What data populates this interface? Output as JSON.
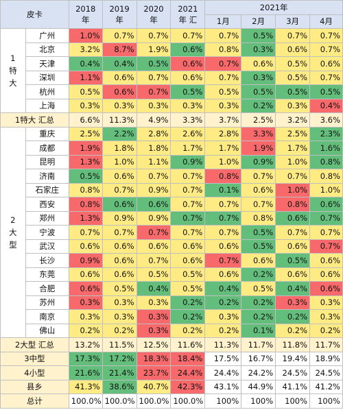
{
  "chart_data": {
    "type": "table",
    "header": {
      "corner": "皮卡",
      "year_cols": [
        "2018\n年",
        "2019\n年",
        "2020\n年",
        "2021\n年 汇"
      ],
      "month_group": "2021年",
      "month_cols": [
        "1月",
        "2月",
        "3月",
        "4月"
      ]
    },
    "groups": [
      {
        "label": "1\n特\n大",
        "rows": [
          {
            "city": "广州",
            "values": [
              "1.0%",
              "0.7%",
              "0.7%",
              "0.7%",
              "0.7%",
              "0.5%",
              "0.7%",
              "0.7%"
            ],
            "colors": [
              "#f8696b",
              "#ffeb84",
              "#ffeb84",
              "#ffeb84",
              "#ffeb84",
              "#63be7b",
              "#ffeb84",
              "#ffeb84"
            ]
          },
          {
            "city": "北京",
            "values": [
              "3.2%",
              "8.7%",
              "1.9%",
              "0.6%",
              "0.8%",
              "0.3%",
              "0.6%",
              "0.7%"
            ],
            "colors": [
              "#ffeb84",
              "#f8696b",
              "#ffeb84",
              "#63be7b",
              "#ffeb84",
              "#63be7b",
              "#ffeb84",
              "#ffeb84"
            ]
          },
          {
            "city": "天津",
            "values": [
              "0.4%",
              "0.4%",
              "0.5%",
              "0.6%",
              "0.7%",
              "0.6%",
              "0.5%",
              "0.6%"
            ],
            "colors": [
              "#63be7b",
              "#63be7b",
              "#63be7b",
              "#f8696b",
              "#f8696b",
              "#ffeb84",
              "#ffeb84",
              "#ffeb84"
            ]
          },
          {
            "city": "深圳",
            "values": [
              "1.1%",
              "0.6%",
              "0.7%",
              "0.6%",
              "0.7%",
              "0.3%",
              "0.5%",
              "0.7%"
            ],
            "colors": [
              "#f8696b",
              "#ffeb84",
              "#ffeb84",
              "#ffeb84",
              "#ffeb84",
              "#63be7b",
              "#ffeb84",
              "#ffeb84"
            ]
          },
          {
            "city": "杭州",
            "values": [
              "0.5%",
              "0.6%",
              "0.7%",
              "0.5%",
              "0.5%",
              "0.5%",
              "0.5%",
              "0.5%"
            ],
            "colors": [
              "#ffeb84",
              "#f8696b",
              "#f8696b",
              "#63be7b",
              "#ffeb84",
              "#63be7b",
              "#63be7b",
              "#63be7b"
            ]
          },
          {
            "city": "上海",
            "values": [
              "0.3%",
              "0.3%",
              "0.3%",
              "0.3%",
              "0.3%",
              "0.2%",
              "0.3%",
              "0.4%"
            ],
            "colors": [
              "#ffeb84",
              "#ffeb84",
              "#ffeb84",
              "#ffeb84",
              "#ffeb84",
              "#63be7b",
              "#ffeb84",
              "#f8696b"
            ]
          }
        ]
      },
      {
        "subtotal_label": "1特大 汇总",
        "subtotal_values": [
          "6.6%",
          "11.3%",
          "4.9%",
          "3.3%",
          "3.7%",
          "2.5%",
          "3.2%",
          "3.6%"
        ]
      },
      {
        "label": "2\n大\n型",
        "rows": [
          {
            "city": "重庆",
            "values": [
              "2.5%",
              "2.2%",
              "2.8%",
              "2.6%",
              "2.8%",
              "3.3%",
              "2.5%",
              "2.3%"
            ],
            "colors": [
              "#ffeb84",
              "#63be7b",
              "#ffeb84",
              "#ffeb84",
              "#ffeb84",
              "#f8696b",
              "#ffeb84",
              "#63be7b"
            ]
          },
          {
            "city": "成都",
            "values": [
              "1.9%",
              "1.8%",
              "1.8%",
              "1.7%",
              "1.7%",
              "1.9%",
              "1.7%",
              "1.6%"
            ],
            "colors": [
              "#f8696b",
              "#ffeb84",
              "#ffeb84",
              "#ffeb84",
              "#ffeb84",
              "#f8696b",
              "#ffeb84",
              "#63be7b"
            ]
          },
          {
            "city": "昆明",
            "values": [
              "1.3%",
              "1.0%",
              "1.1%",
              "0.9%",
              "1.0%",
              "0.9%",
              "1.0%",
              "0.8%"
            ],
            "colors": [
              "#f8696b",
              "#ffeb84",
              "#ffeb84",
              "#63be7b",
              "#ffeb84",
              "#63be7b",
              "#ffeb84",
              "#63be7b"
            ]
          },
          {
            "city": "济南",
            "values": [
              "0.5%",
              "0.6%",
              "0.7%",
              "0.7%",
              "0.8%",
              "0.7%",
              "0.7%",
              "0.8%"
            ],
            "colors": [
              "#63be7b",
              "#ffeb84",
              "#ffeb84",
              "#ffeb84",
              "#f8696b",
              "#ffeb84",
              "#ffeb84",
              "#ffeb84"
            ]
          },
          {
            "city": "石家庄",
            "values": [
              "0.8%",
              "0.7%",
              "0.9%",
              "0.7%",
              "0.1%",
              "0.6%",
              "1.0%",
              "1.0%"
            ],
            "colors": [
              "#ffeb84",
              "#ffeb84",
              "#ffeb84",
              "#ffeb84",
              "#63be7b",
              "#ffeb84",
              "#f8696b",
              "#ffeb84"
            ]
          },
          {
            "city": "西安",
            "values": [
              "0.8%",
              "0.6%",
              "0.6%",
              "0.7%",
              "0.7%",
              "0.7%",
              "0.8%",
              "0.6%"
            ],
            "colors": [
              "#f8696b",
              "#63be7b",
              "#63be7b",
              "#ffeb84",
              "#ffeb84",
              "#ffeb84",
              "#f8696b",
              "#63be7b"
            ]
          },
          {
            "city": "郑州",
            "values": [
              "1.3%",
              "0.9%",
              "0.9%",
              "0.7%",
              "0.7%",
              "0.8%",
              "0.6%",
              "0.7%"
            ],
            "colors": [
              "#f8696b",
              "#ffeb84",
              "#ffeb84",
              "#63be7b",
              "#63be7b",
              "#ffeb84",
              "#63be7b",
              "#63be7b"
            ]
          },
          {
            "city": "宁波",
            "values": [
              "0.7%",
              "0.7%",
              "0.7%",
              "0.7%",
              "0.7%",
              "0.5%",
              "0.7%",
              "0.7%"
            ],
            "colors": [
              "#ffeb84",
              "#ffeb84",
              "#f8696b",
              "#ffeb84",
              "#ffeb84",
              "#63be7b",
              "#ffeb84",
              "#ffeb84"
            ]
          },
          {
            "city": "武汉",
            "values": [
              "0.6%",
              "0.6%",
              "0.6%",
              "0.6%",
              "0.6%",
              "0.5%",
              "0.6%",
              "0.7%"
            ],
            "colors": [
              "#ffeb84",
              "#ffeb84",
              "#ffeb84",
              "#ffeb84",
              "#ffeb84",
              "#63be7b",
              "#ffeb84",
              "#f8696b"
            ]
          },
          {
            "city": "长沙",
            "values": [
              "0.9%",
              "0.6%",
              "0.7%",
              "0.6%",
              "0.7%",
              "0.6%",
              "0.5%",
              "0.6%"
            ],
            "colors": [
              "#f8696b",
              "#ffeb84",
              "#ffeb84",
              "#ffeb84",
              "#f8696b",
              "#ffeb84",
              "#63be7b",
              "#ffeb84"
            ]
          },
          {
            "city": "东莞",
            "values": [
              "0.6%",
              "0.6%",
              "0.5%",
              "0.5%",
              "0.6%",
              "0.2%",
              "0.6%",
              "0.6%"
            ],
            "colors": [
              "#ffeb84",
              "#ffeb84",
              "#ffeb84",
              "#ffeb84",
              "#ffeb84",
              "#63be7b",
              "#ffeb84",
              "#ffeb84"
            ]
          },
          {
            "city": "合肥",
            "values": [
              "0.6%",
              "0.5%",
              "0.4%",
              "0.5%",
              "0.4%",
              "0.5%",
              "0.4%",
              "0.6%"
            ],
            "colors": [
              "#f8696b",
              "#ffeb84",
              "#63be7b",
              "#ffeb84",
              "#63be7b",
              "#ffeb84",
              "#63be7b",
              "#f8696b"
            ]
          },
          {
            "city": "苏州",
            "values": [
              "0.3%",
              "0.3%",
              "0.3%",
              "0.2%",
              "0.2%",
              "0.2%",
              "0.3%",
              "0.3%"
            ],
            "colors": [
              "#f8696b",
              "#ffeb84",
              "#ffeb84",
              "#63be7b",
              "#63be7b",
              "#63be7b",
              "#f8696b",
              "#ffeb84"
            ]
          },
          {
            "city": "南京",
            "values": [
              "0.3%",
              "0.3%",
              "0.3%",
              "0.2%",
              "0.3%",
              "0.2%",
              "0.2%",
              "0.3%"
            ],
            "colors": [
              "#ffeb84",
              "#ffeb84",
              "#f8696b",
              "#63be7b",
              "#ffeb84",
              "#63be7b",
              "#63be7b",
              "#ffeb84"
            ]
          },
          {
            "city": "佛山",
            "values": [
              "0.2%",
              "0.2%",
              "0.3%",
              "0.2%",
              "0.2%",
              "0.1%",
              "0.2%",
              "0.2%"
            ],
            "colors": [
              "#ffeb84",
              "#ffeb84",
              "#f8696b",
              "#ffeb84",
              "#ffeb84",
              "#63be7b",
              "#ffeb84",
              "#ffeb84"
            ]
          }
        ]
      },
      {
        "subtotal_label": "2大型 汇总",
        "subtotal_values": [
          "13.2%",
          "11.5%",
          "12.5%",
          "11.6%",
          "11.3%",
          "11.7%",
          "11.8%",
          "11.7%"
        ]
      }
    ],
    "tail_rows": [
      {
        "label": "3中型",
        "values": [
          "17.3%",
          "17.2%",
          "18.3%",
          "18.4%",
          "17.5%",
          "16.7%",
          "19.4%",
          "18.9%"
        ],
        "colors": [
          "#63be7b",
          "#63be7b",
          "#f8696b",
          "#f8696b",
          "#ffffff",
          "#ffffff",
          "#ffffff",
          "#ffffff"
        ]
      },
      {
        "label": "4小型",
        "values": [
          "21.6%",
          "21.4%",
          "23.7%",
          "24.4%",
          "24.4%",
          "24.2%",
          "24.5%",
          "24.5%"
        ],
        "colors": [
          "#63be7b",
          "#63be7b",
          "#f8696b",
          "#f8696b",
          "#ffffff",
          "#ffffff",
          "#ffffff",
          "#ffffff"
        ]
      },
      {
        "label": "县乡",
        "values": [
          "41.3%",
          "38.6%",
          "40.7%",
          "42.3%",
          "43.1%",
          "44.9%",
          "41.1%",
          "41.2%"
        ],
        "colors": [
          "#ffeb84",
          "#63be7b",
          "#ffeb84",
          "#f8696b",
          "#ffffff",
          "#ffffff",
          "#ffffff",
          "#ffffff"
        ]
      }
    ],
    "total_row": {
      "label": "总计",
      "values": [
        "100.0%",
        "100.0%",
        "100.0%",
        "100.0%",
        "100%",
        "100%",
        "100%",
        "100%"
      ]
    }
  }
}
